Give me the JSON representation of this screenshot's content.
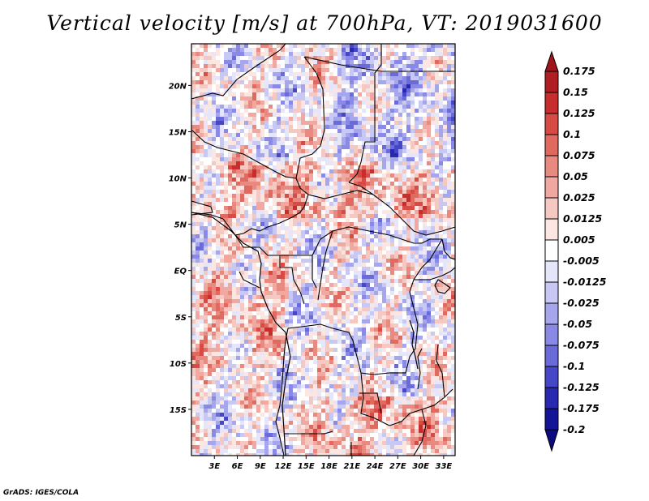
{
  "title": "Vertical velocity [m/s] at 700hPa, VT: 2019031600",
  "footer": "GrADS: IGES/COLA",
  "map": {
    "lat_labels": [
      "20N",
      "15N",
      "10N",
      "5N",
      "EQ",
      "5S",
      "10S",
      "15S"
    ],
    "lon_labels": [
      "3E",
      "6E",
      "9E",
      "12E",
      "15E",
      "18E",
      "21E",
      "24E",
      "27E",
      "30E",
      "33E"
    ],
    "extent": {
      "lon_min": 0,
      "lon_max": 34.5,
      "lat_min": -20,
      "lat_max": 24.5
    }
  },
  "colorbar": {
    "levels": [
      "0.175",
      "0.15",
      "0.125",
      "0.1",
      "0.075",
      "0.05",
      "0.025",
      "0.0125",
      "0.005",
      "-0.005",
      "-0.0125",
      "-0.025",
      "-0.05",
      "-0.075",
      "-0.1",
      "-0.125",
      "-0.175",
      "-0.2"
    ],
    "colors": [
      "#a0141c",
      "#b01e24",
      "#c82d2d",
      "#d84a44",
      "#e06a60",
      "#e88a80",
      "#f0a8a0",
      "#f6c8c2",
      "#fbe6e2",
      "#ffffff",
      "#e6e6fb",
      "#c8c8f4",
      "#a6a6ec",
      "#8a8ae6",
      "#6a6ad8",
      "#4646c8",
      "#2828b0",
      "#141496",
      "#0c0c80"
    ]
  }
}
